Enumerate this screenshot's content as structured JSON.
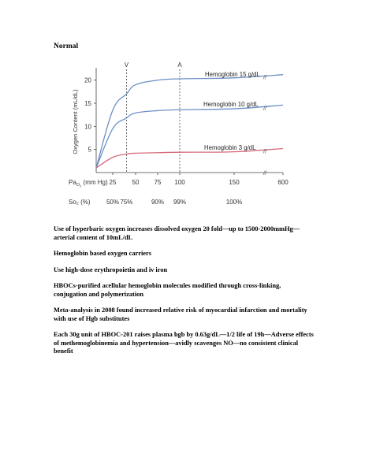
{
  "heading": "Normal",
  "chart_data": {
    "type": "line",
    "xlabel": "PaO2 (mm Hg)",
    "xlabel_main": "Pa",
    "xlabel_sub": "O",
    "xlabel_subsub": "2",
    "xlabel_rest": " (mm Hg)",
    "ylabel": "Oxygen Content (mL/dL)",
    "x_ticks": [
      "25",
      "50",
      "75",
      "100",
      "150",
      "600"
    ],
    "y_ticks": [
      "5",
      "10",
      "15",
      "20"
    ],
    "ylim": [
      0,
      22
    ],
    "so2_label": "So₂ (%)",
    "so2_ticks": [
      "50%",
      "75%",
      "90%",
      "99%",
      "100%"
    ],
    "markers": [
      {
        "label": "V",
        "x": 40
      },
      {
        "label": "A",
        "x": 100
      }
    ],
    "series": [
      {
        "name": "Hemoglobin 15 g/dL",
        "color": "#6b8fc6",
        "x": [
          0,
          25,
          40,
          50,
          75,
          100,
          150,
          600
        ],
        "y": [
          1.0,
          13.5,
          17.0,
          19.0,
          20.0,
          20.3,
          20.5,
          21.2
        ]
      },
      {
        "name": "Hemoglobin 10 g/dL",
        "color": "#6b8fc6",
        "x": [
          0,
          25,
          40,
          50,
          75,
          100,
          150,
          600
        ],
        "y": [
          1.0,
          9.5,
          11.8,
          12.9,
          13.4,
          13.6,
          13.8,
          14.6
        ]
      },
      {
        "name": "Hemoglobin 3 g/dL",
        "color": "#d46a7a",
        "x": [
          0,
          25,
          40,
          50,
          75,
          100,
          150,
          600
        ],
        "y": [
          1.0,
          3.3,
          4.0,
          4.2,
          4.3,
          4.4,
          4.5,
          5.2
        ]
      }
    ],
    "break_marks": [
      "//",
      "//",
      "//",
      "//"
    ]
  },
  "notes": [
    "Use of hyperbaric oxygen increases dissolved oxygen 20 fold—up to 1500-2000mmHg—arterial content of 10mL/dL",
    "Hemoglobin based oxygen carriers",
    "Use high-dose erythropoietin and iv iron",
    "HBOCs-purified acellular hemoglobin molecules modified through cross-linking, conjugation and polymerization",
    "Meta-analysis in 2008 found increased relative risk of myocardial infarction and mortality with use of Hgb substitutes",
    "Each 30g unit of HBOC-201 raises plasma hgb by 0.63g/dL—1/2 life of 19h—Adverse effects of methemoglobinemia and hypertension—avidly scavenges NO—no consistent clinical benefit"
  ]
}
